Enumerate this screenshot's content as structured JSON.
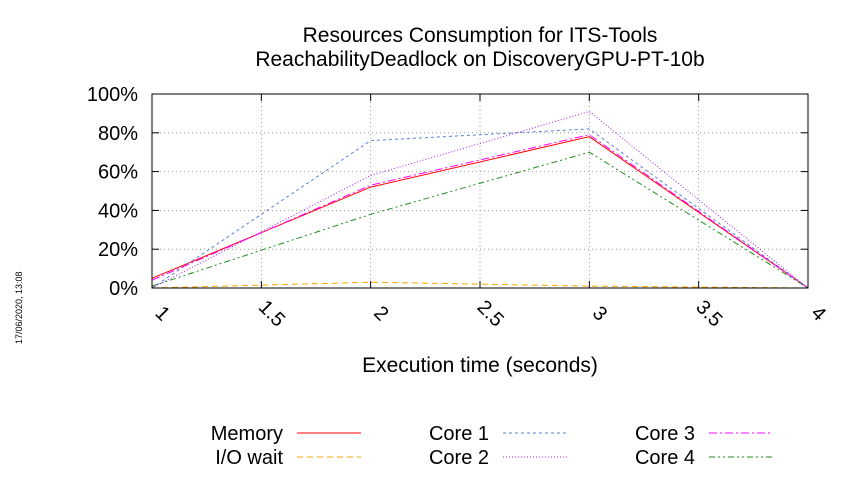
{
  "timestamp": "17/06/2020, 13:08",
  "chart_data": {
    "type": "line",
    "title": "Resources Consumption for ITS-Tools",
    "subtitle": "ReachabilityDeadlock on DiscoveryGPU-PT-10b",
    "xlabel": "Execution time (seconds)",
    "ylabel": "",
    "xlim": [
      1,
      4
    ],
    "ylim": [
      0,
      100
    ],
    "x_ticks": [
      "1",
      "1.5",
      "2",
      "2.5",
      "3",
      "3.5",
      "4"
    ],
    "y_ticks": [
      "0%",
      "20%",
      "40%",
      "60%",
      "80%",
      "100%"
    ],
    "grid": true,
    "legend_position": "bottom",
    "series": [
      {
        "name": "Memory",
        "color": "#ff0000",
        "dash": "solid",
        "x": [
          1,
          2,
          3,
          4
        ],
        "y": [
          5,
          52,
          78,
          0
        ]
      },
      {
        "name": "I/O wait",
        "color": "#ffa500",
        "dash": "dashed",
        "x": [
          1,
          2,
          3,
          4
        ],
        "y": [
          0,
          3,
          1,
          0
        ]
      },
      {
        "name": "Core 1",
        "color": "#5b7fd6",
        "dash": "dashed-short",
        "x": [
          1,
          2,
          3,
          4
        ],
        "y": [
          0,
          76,
          82,
          0
        ]
      },
      {
        "name": "Core 2",
        "color": "#a020f0",
        "dash": "dotted",
        "x": [
          1,
          2,
          3,
          4
        ],
        "y": [
          0,
          58,
          91,
          0
        ]
      },
      {
        "name": "Core 3",
        "color": "#ff00ff",
        "dash": "dash-dot",
        "x": [
          1,
          2,
          3,
          4
        ],
        "y": [
          4,
          53,
          79,
          0
        ]
      },
      {
        "name": "Core 4",
        "color": "#228b22",
        "dash": "dash-dot-dot",
        "x": [
          1,
          2,
          3,
          4
        ],
        "y": [
          1,
          38,
          70,
          0
        ]
      }
    ]
  }
}
